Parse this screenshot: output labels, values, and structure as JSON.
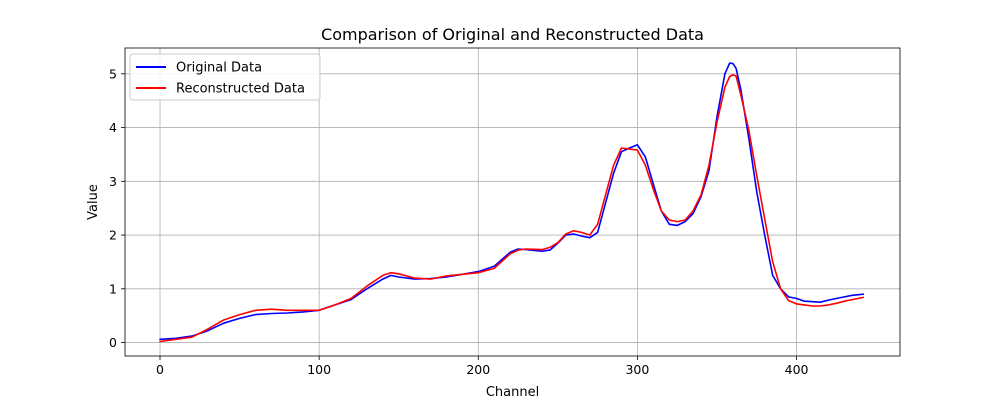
{
  "chart_data": {
    "type": "line",
    "title": "Comparison of Original and Reconstructed Data",
    "xlabel": "Channel",
    "ylabel": "Value",
    "xlim": [
      -22,
      465
    ],
    "ylim": [
      -0.25,
      5.48
    ],
    "xticks": [
      0,
      100,
      200,
      300,
      400
    ],
    "yticks": [
      0,
      1,
      2,
      3,
      4,
      5
    ],
    "grid": true,
    "legend_position": "top-left",
    "series": [
      {
        "name": "Original Data",
        "color": "#0000ff",
        "x": [
          0,
          10,
          20,
          30,
          40,
          50,
          60,
          70,
          80,
          90,
          100,
          110,
          120,
          130,
          140,
          145,
          150,
          160,
          170,
          180,
          190,
          200,
          210,
          220,
          225,
          230,
          240,
          245,
          250,
          255,
          260,
          265,
          270,
          275,
          280,
          285,
          290,
          295,
          300,
          305,
          310,
          315,
          320,
          325,
          330,
          335,
          340,
          345,
          350,
          355,
          358,
          360,
          362,
          365,
          370,
          375,
          380,
          385,
          390,
          395,
          400,
          405,
          410,
          415,
          420,
          425,
          430,
          435,
          442
        ],
        "y": [
          0.06,
          0.08,
          0.12,
          0.22,
          0.36,
          0.45,
          0.52,
          0.54,
          0.55,
          0.57,
          0.6,
          0.7,
          0.8,
          1.0,
          1.18,
          1.25,
          1.22,
          1.18,
          1.19,
          1.22,
          1.27,
          1.32,
          1.42,
          1.68,
          1.74,
          1.73,
          1.7,
          1.72,
          1.85,
          2.0,
          2.02,
          1.98,
          1.95,
          2.05,
          2.6,
          3.15,
          3.55,
          3.62,
          3.68,
          3.45,
          2.95,
          2.45,
          2.2,
          2.18,
          2.25,
          2.4,
          2.72,
          3.2,
          4.2,
          5.0,
          5.2,
          5.19,
          5.1,
          4.7,
          3.8,
          2.8,
          2.0,
          1.25,
          1.0,
          0.85,
          0.82,
          0.77,
          0.76,
          0.75,
          0.79,
          0.82,
          0.85,
          0.88,
          0.9
        ]
      },
      {
        "name": "Reconstructed Data",
        "color": "#ff0000",
        "x": [
          0,
          10,
          20,
          30,
          40,
          50,
          60,
          70,
          80,
          90,
          100,
          110,
          120,
          130,
          140,
          145,
          150,
          160,
          170,
          180,
          190,
          200,
          210,
          220,
          225,
          230,
          240,
          245,
          250,
          255,
          260,
          265,
          270,
          275,
          280,
          285,
          290,
          295,
          300,
          305,
          310,
          315,
          320,
          325,
          330,
          335,
          340,
          345,
          350,
          355,
          358,
          360,
          362,
          365,
          370,
          375,
          380,
          385,
          390,
          395,
          400,
          405,
          410,
          415,
          420,
          425,
          430,
          435,
          442
        ],
        "y": [
          0.02,
          0.06,
          0.1,
          0.25,
          0.42,
          0.52,
          0.6,
          0.62,
          0.6,
          0.6,
          0.6,
          0.7,
          0.82,
          1.05,
          1.25,
          1.3,
          1.28,
          1.2,
          1.18,
          1.24,
          1.27,
          1.3,
          1.38,
          1.65,
          1.72,
          1.74,
          1.73,
          1.77,
          1.86,
          2.02,
          2.08,
          2.05,
          2.0,
          2.2,
          2.75,
          3.3,
          3.62,
          3.6,
          3.58,
          3.3,
          2.85,
          2.45,
          2.28,
          2.25,
          2.28,
          2.45,
          2.75,
          3.3,
          4.1,
          4.75,
          4.95,
          4.98,
          4.96,
          4.6,
          3.95,
          3.1,
          2.3,
          1.5,
          1.0,
          0.78,
          0.72,
          0.7,
          0.68,
          0.68,
          0.7,
          0.73,
          0.77,
          0.8,
          0.84
        ]
      }
    ]
  }
}
